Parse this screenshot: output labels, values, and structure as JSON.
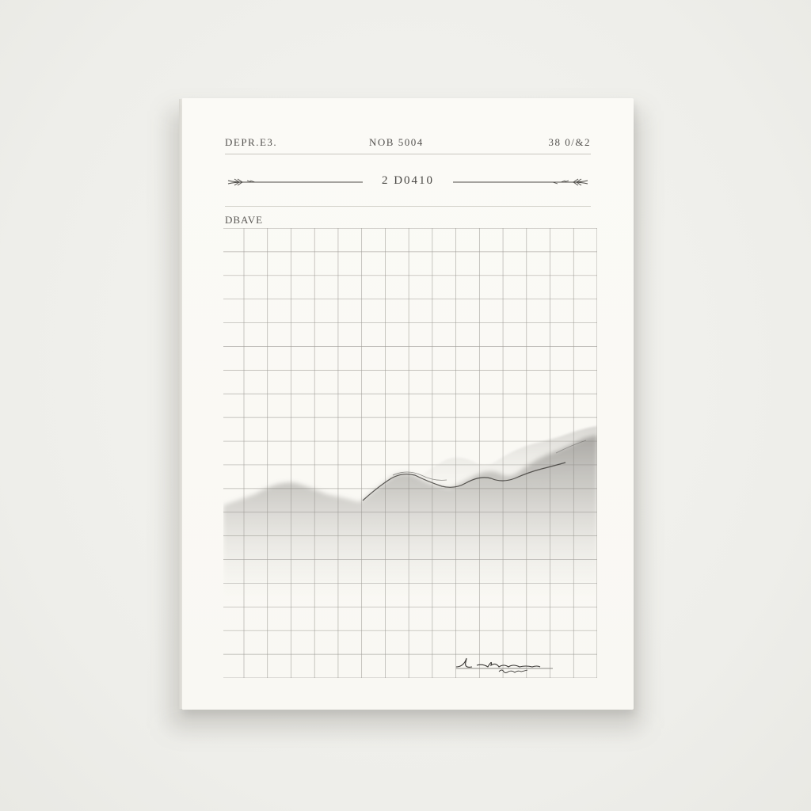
{
  "header": {
    "left": "DEPR.E3.",
    "center": "NOB 5004",
    "right": "38 0/&2"
  },
  "date_line": "2 D0410",
  "section": {
    "label": "DBAVE"
  },
  "grid": {
    "columns": 16,
    "rows": 19
  },
  "colors": {
    "paper": "#faf9f5",
    "ink": "#4a4845",
    "grid_line": "#9f9d97",
    "wash": "#7d7b77"
  },
  "icons": {
    "left_ornament": "branch-ornament-icon",
    "right_ornament": "branch-ornament-icon",
    "signature": "handwritten-signature"
  }
}
